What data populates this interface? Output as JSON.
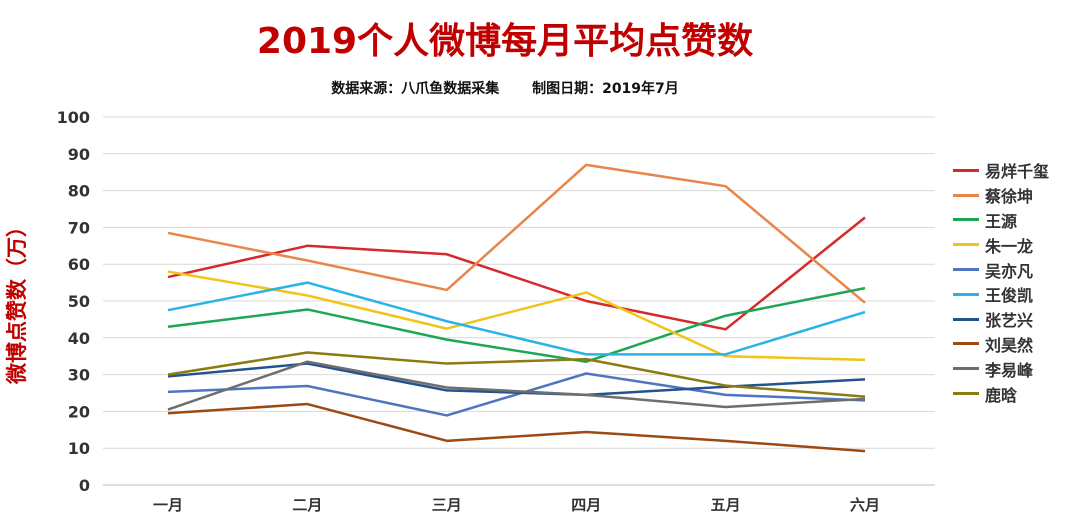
{
  "header": {
    "title": "2019个人微博每月平均点赞数",
    "source": "数据来源：八爪鱼数据采集",
    "date": "制图日期：2019年7月"
  },
  "chart_data": {
    "type": "line",
    "title": "2019个人微博每月平均点赞数",
    "xlabel": "",
    "ylabel": "微博点赞数（万）",
    "categories": [
      "一月",
      "二月",
      "三月",
      "四月",
      "五月",
      "六月"
    ],
    "ylim": [
      0,
      100
    ],
    "yticks": [
      0,
      10,
      20,
      30,
      40,
      50,
      60,
      70,
      80,
      90,
      100
    ],
    "grid": true,
    "legend_position": "right",
    "series": [
      {
        "name": "易烊千玺",
        "color": "#d62a2a",
        "values": [
          56.5,
          65,
          62.7,
          50,
          42.3,
          72.7
        ]
      },
      {
        "name": "蔡徐坤",
        "color": "#e8854a",
        "values": [
          68.5,
          61,
          53,
          87,
          81.2,
          49.5
        ]
      },
      {
        "name": "王源",
        "color": "#1fa654",
        "values": [
          43,
          47.7,
          39.5,
          33.5,
          46,
          53.5
        ]
      },
      {
        "name": "朱一龙",
        "color": "#f2c318",
        "values": [
          58,
          51.5,
          42.5,
          52.3,
          35,
          34
        ]
      },
      {
        "name": "吴亦凡",
        "color": "#4f74c0",
        "values": [
          25.3,
          26.9,
          18.9,
          30.3,
          24.5,
          23
        ]
      },
      {
        "name": "王俊凯",
        "color": "#2bb2e6",
        "values": [
          47.5,
          55,
          44.5,
          35.5,
          35.5,
          47
        ]
      },
      {
        "name": "张艺兴",
        "color": "#23538f",
        "values": [
          29.5,
          33,
          25.7,
          24.5,
          26.7,
          28.7
        ]
      },
      {
        "name": "刘昊然",
        "color": "#9c4a12",
        "values": [
          19.5,
          22,
          12,
          14.4,
          12,
          9.2
        ]
      },
      {
        "name": "李易峰",
        "color": "#6e6e6e",
        "values": [
          20.5,
          33.5,
          26.5,
          24.5,
          21.2,
          23.4
        ]
      },
      {
        "name": "鹿晗",
        "color": "#8c7a12",
        "values": [
          30,
          36,
          33,
          34.2,
          27,
          24
        ]
      }
    ]
  }
}
